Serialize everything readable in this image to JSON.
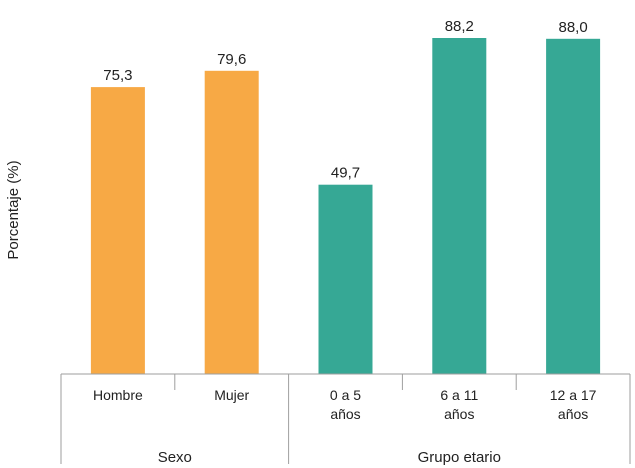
{
  "chart_data": {
    "type": "bar",
    "title": "",
    "xlabel": "",
    "ylabel": "Porcentaje (%)",
    "ylim": [
      0,
      100
    ],
    "grid": false,
    "legend": "none",
    "categories": [
      {
        "label_lines": [
          "Hombre"
        ],
        "value": 75.3,
        "value_label": "75,3",
        "color": "#F7A945",
        "group": 0
      },
      {
        "label_lines": [
          "Mujer"
        ],
        "value": 79.6,
        "value_label": "79,6",
        "color": "#F7A945",
        "group": 0
      },
      {
        "label_lines": [
          "0 a 5",
          "años"
        ],
        "value": 49.7,
        "value_label": "49,7",
        "color": "#36A895",
        "group": 1
      },
      {
        "label_lines": [
          "6 a 11",
          "años"
        ],
        "value": 88.2,
        "value_label": "88,2",
        "color": "#36A895",
        "group": 1
      },
      {
        "label_lines": [
          "12 a 17",
          "años"
        ],
        "value": 88.0,
        "value_label": "88,0",
        "color": "#36A895",
        "group": 1
      }
    ],
    "groups": [
      {
        "label": "Sexo"
      },
      {
        "label": "Grupo etario"
      }
    ]
  }
}
